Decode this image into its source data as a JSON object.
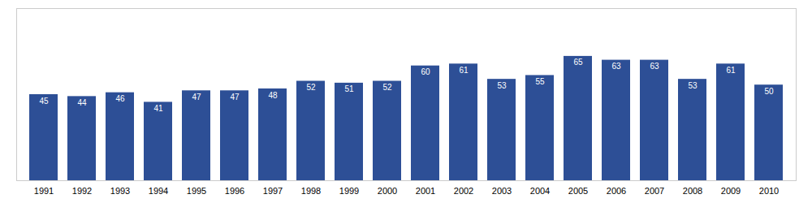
{
  "chart_data": {
    "type": "bar",
    "categories": [
      "1991",
      "1992",
      "1993",
      "1994",
      "1995",
      "1996",
      "1997",
      "1998",
      "1999",
      "2000",
      "2001",
      "2002",
      "2003",
      "2004",
      "2005",
      "2006",
      "2007",
      "2008",
      "2009",
      "2010"
    ],
    "values": [
      45,
      44,
      46,
      41,
      47,
      47,
      48,
      52,
      51,
      52,
      60,
      61,
      53,
      55,
      65,
      63,
      63,
      53,
      61,
      50
    ],
    "color": "#2d4f96",
    "ylim": [
      0,
      90
    ],
    "grid": false,
    "data_labels": true,
    "tick_labels": "x"
  }
}
